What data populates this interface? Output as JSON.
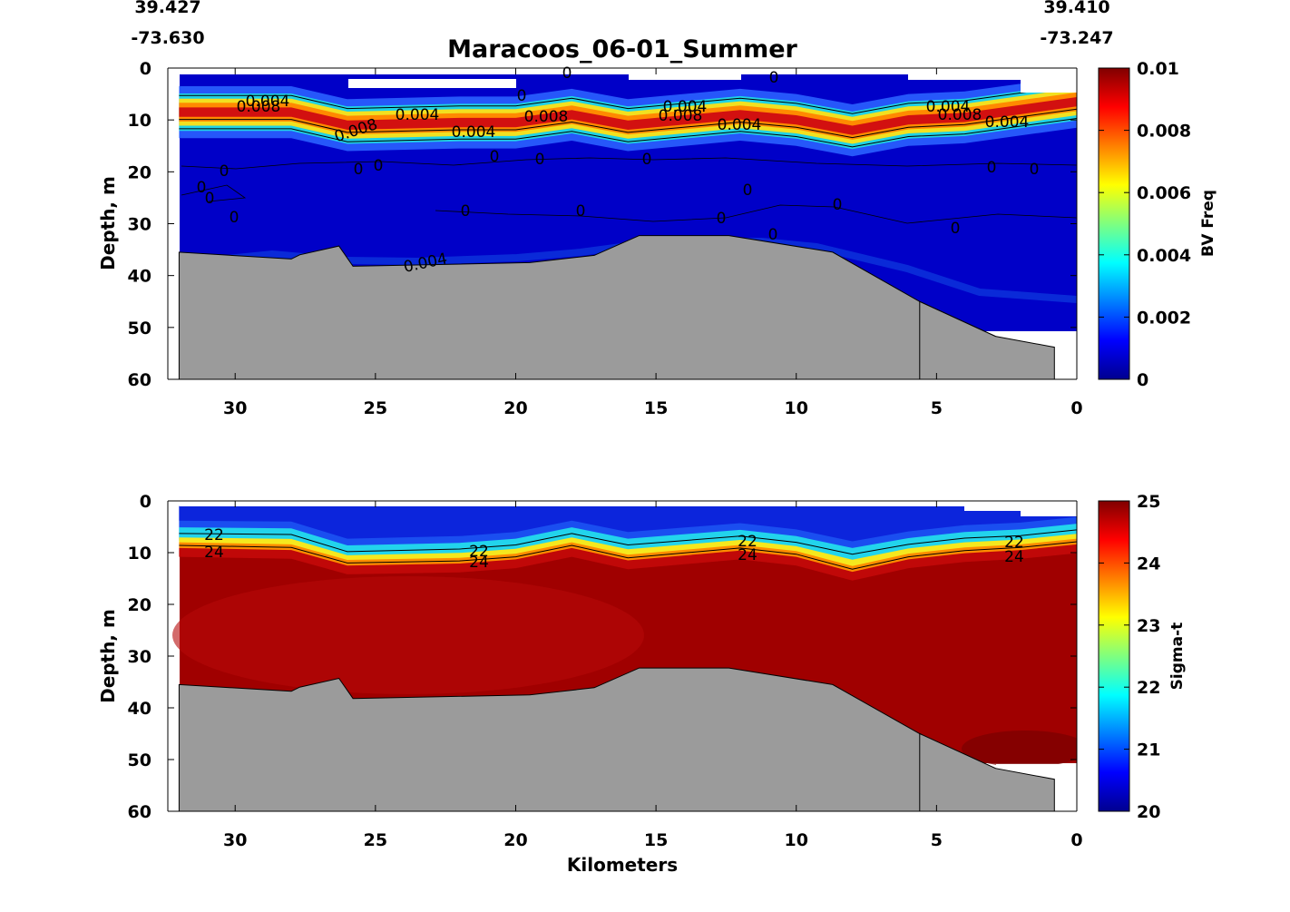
{
  "chart_data": {
    "title": "Maracoos_06-01_Summer",
    "coords": {
      "left_lat": "39.427",
      "left_lon": "-73.630",
      "right_lat": "39.410",
      "right_lon": "-73.247"
    },
    "xlabel": "Kilometers",
    "xlim": [
      32.4,
      0
    ],
    "xticks": [
      "30",
      "25",
      "20",
      "15",
      "10",
      "5",
      "0"
    ],
    "xtick_values": [
      30,
      25,
      20,
      15,
      10,
      5,
      0
    ],
    "seafloor": {
      "x": [
        32.0,
        28.0,
        27.7,
        26.3,
        25.8,
        19.5,
        17.2,
        15.6,
        12.4,
        8.7,
        5.6,
        2.9,
        0.8,
        0.8
      ],
      "depth": [
        35.5,
        36.8,
        36.0,
        34.3,
        38.2,
        37.5,
        36.1,
        32.3,
        32.3,
        35.5,
        45.0,
        51.7,
        53.8,
        60
      ]
    },
    "panels": [
      {
        "type": "contour",
        "ylabel": "Depth, m",
        "ylim": [
          60,
          0
        ],
        "yticks": [
          "0",
          "10",
          "20",
          "30",
          "40",
          "50",
          "60"
        ],
        "ytick_values": [
          0,
          10,
          20,
          30,
          40,
          50,
          60
        ],
        "colorbar": {
          "label": "BV Freq",
          "range": [
            0,
            0.01
          ],
          "ticks": [
            "0.01",
            "0.008",
            "0.006",
            "0.004",
            "0.002",
            "0"
          ],
          "tick_values": [
            0.01,
            0.008,
            0.006,
            0.004,
            0.002,
            0
          ]
        },
        "pycnocline": {
          "x": [
            32,
            28,
            26,
            22,
            20,
            18,
            16,
            12,
            10,
            8,
            6,
            4,
            2,
            0
          ],
          "depth": [
            8.5,
            8.5,
            11,
            10.5,
            10.5,
            9,
            11,
            9,
            10,
            12,
            10,
            9.5,
            8,
            6.5
          ]
        },
        "contour_labels": [
          "0.004",
          "0.008",
          "0.008",
          "0.004",
          "0.004",
          "0.008",
          "0.004",
          "0.008",
          "0.004",
          "0.004",
          "0.008",
          "0.004",
          "0.004",
          "0",
          "0",
          "0",
          "0",
          "0",
          "0",
          "0",
          "0",
          "0",
          "0",
          "0",
          "0",
          "0",
          "0",
          "0",
          "0",
          "0",
          "0",
          "0",
          "0",
          "0"
        ]
      },
      {
        "type": "contour",
        "ylabel": "Depth, m",
        "ylim": [
          60,
          0
        ],
        "yticks": [
          "0",
          "10",
          "20",
          "30",
          "40",
          "50",
          "60"
        ],
        "ytick_values": [
          0,
          10,
          20,
          30,
          40,
          50,
          60
        ],
        "colorbar": {
          "label": "Sigma-t",
          "range": [
            20,
            25
          ],
          "ticks": [
            "25",
            "24",
            "23",
            "22",
            "21",
            "20"
          ],
          "tick_values": [
            25,
            24,
            23,
            22,
            21,
            20
          ]
        },
        "isopycnal_22": {
          "x": [
            32,
            28,
            26,
            22,
            20,
            18,
            16,
            12,
            10,
            8,
            6,
            4,
            2,
            0
          ],
          "depth": [
            6.3,
            6.5,
            9.8,
            9.3,
            8.5,
            6.3,
            8.5,
            6.8,
            8.0,
            10.3,
            8.4,
            7.2,
            6.7,
            5.6
          ]
        },
        "isopycnal_24": {
          "x": [
            32,
            28,
            26,
            22,
            20,
            18,
            16,
            12,
            10,
            8,
            6,
            4,
            2,
            0
          ],
          "depth": [
            8.6,
            9.0,
            12.0,
            11.6,
            10.8,
            8.6,
            11.0,
            9.1,
            10.3,
            13.2,
            10.8,
            9.6,
            9.0,
            7.9
          ]
        },
        "contour_labels": [
          "22",
          "24",
          "22",
          "24",
          "22",
          "24",
          "22",
          "24"
        ]
      }
    ]
  }
}
